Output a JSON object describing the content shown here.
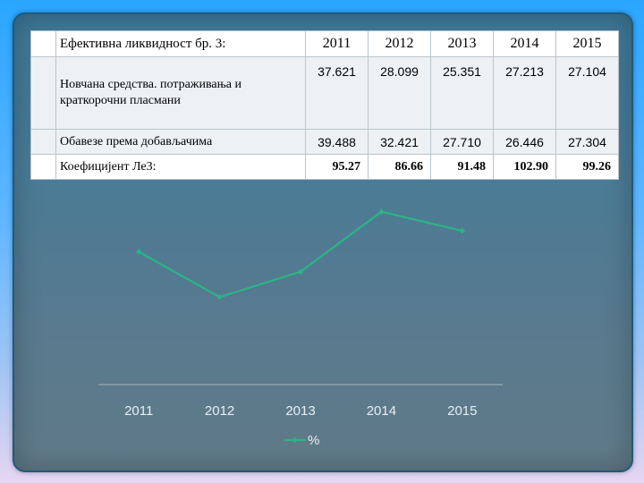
{
  "table": {
    "header": {
      "label": "Ефективна ликвидност бр. 3:",
      "years": [
        "2011",
        "2012",
        "2013",
        "2014",
        "2015"
      ]
    },
    "rows": [
      {
        "label": "Новчана средства. потраживања и краткорочни пласмани",
        "values": [
          "37.621",
          "28.099",
          "25.351",
          "27.213",
          "27.104"
        ]
      },
      {
        "label": "Обавезе према добављачима",
        "values": [
          "39.488",
          "32.421",
          "27.710",
          "26.446",
          "27.304"
        ]
      },
      {
        "label": "Коефицијент Ле3:",
        "values": [
          "95.27",
          "86.66",
          "91.48",
          "102.90",
          "99.26"
        ]
      }
    ]
  },
  "chart_data": {
    "type": "line",
    "x": [
      "2011",
      "2012",
      "2013",
      "2014",
      "2015"
    ],
    "series": [
      {
        "name": "%",
        "values": [
          95.27,
          86.66,
          91.48,
          102.9,
          99.26
        ]
      }
    ],
    "ylim": [
      70,
      110
    ],
    "grid": false,
    "legend": "bottom",
    "colors": {
      "line": "#2bb585",
      "axis": "#aab5bd"
    }
  }
}
